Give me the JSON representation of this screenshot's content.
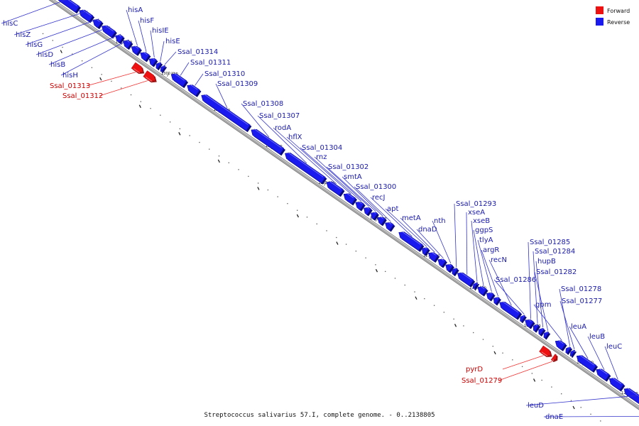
{
  "caption": "Streptococcus salivarius 57.I, complete genome. - 0..2138805",
  "colors": {
    "forward": "#ee1111",
    "reverse": "#1a1aee",
    "forward_label": "#cc0000",
    "reverse_label": "#1a1aaa",
    "track": "#a8a8a8"
  },
  "legend": [
    {
      "name": "Forward",
      "strand": "forward"
    },
    {
      "name": "Reverse",
      "strand": "reverse"
    }
  ],
  "ticks": [
    {
      "label": "1305 kbp",
      "t": 0.118
    },
    {
      "label": "1300 kbp",
      "t": 0.195
    },
    {
      "label": "1295 kbp",
      "t": 0.283
    },
    {
      "label": "1290 kbp",
      "t": 0.371
    },
    {
      "label": "1285 kbp",
      "t": 0.46
    },
    {
      "label": "1280 kbp",
      "t": 0.547
    },
    {
      "label": "1275 kbp",
      "t": 0.637
    },
    {
      "label": "1270 kbp",
      "t": 0.715
    },
    {
      "label": "1265 kbp",
      "t": 0.807
    },
    {
      "label": "1260 kbp",
      "t": 0.896
    },
    {
      "label": "1255 kbp",
      "t": 0.971
    }
  ],
  "genes": [
    {
      "name": "hisC",
      "strand": "reverse",
      "t0": 0.005,
      "t1": 0.04,
      "label_at": [
        4,
        36
      ]
    },
    {
      "name": "hisZ",
      "strand": "reverse",
      "t0": 0.043,
      "t1": 0.063,
      "label_at": [
        22,
        52
      ]
    },
    {
      "name": "hisG",
      "strand": "reverse",
      "t0": 0.066,
      "t1": 0.078,
      "label_at": [
        38,
        66
      ]
    },
    {
      "name": "hisD",
      "strand": "reverse",
      "t0": 0.081,
      "t1": 0.101,
      "label_at": [
        53,
        80
      ]
    },
    {
      "name": "hisB",
      "strand": "reverse",
      "t0": 0.104,
      "t1": 0.114,
      "label_at": [
        71,
        94
      ]
    },
    {
      "name": "hisH",
      "strand": "reverse",
      "t0": 0.117,
      "t1": 0.128,
      "label_at": [
        88,
        109
      ]
    },
    {
      "name": "hisA",
      "strand": "reverse",
      "t0": 0.131,
      "t1": 0.143,
      "label_at": [
        180,
        17
      ]
    },
    {
      "name": "hisF",
      "strand": "reverse",
      "t0": 0.146,
      "t1": 0.158,
      "label_at": [
        197,
        32
      ]
    },
    {
      "name": "hisIE",
      "strand": "reverse",
      "t0": 0.161,
      "t1": 0.17,
      "label_at": [
        214,
        46
      ]
    },
    {
      "name": "hisE",
      "strand": "reverse",
      "t0": 0.173,
      "t1": 0.178,
      "label_at": [
        233,
        61
      ]
    },
    {
      "name": "Ssal_01314",
      "strand": "reverse",
      "t0": 0.181,
      "t1": 0.185,
      "label_at": [
        250,
        76
      ]
    },
    {
      "name": "Ssal_01313",
      "strand": "forward",
      "t0": 0.148,
      "t1": 0.164,
      "label_at": [
        70,
        124
      ]
    },
    {
      "name": "Ssal_01312",
      "strand": "forward",
      "t0": 0.168,
      "t1": 0.185,
      "label_at": [
        88,
        138
      ]
    },
    {
      "name": "Ssal_01311",
      "strand": "reverse",
      "t0": 0.198,
      "t1": 0.221,
      "label_at": [
        268,
        91
      ]
    },
    {
      "name": "Ssal_01310",
      "strand": "reverse",
      "t0": 0.225,
      "t1": 0.243,
      "label_at": [
        288,
        107
      ]
    },
    {
      "name": "Ssal_01309",
      "strand": "reverse",
      "t0": 0.249,
      "t1": 0.328,
      "label_at": [
        306,
        121
      ]
    },
    {
      "name": "Ssal_01308",
      "strand": "reverse",
      "t0": 0.333,
      "t1": 0.385,
      "label_at": [
        342,
        149
      ]
    },
    {
      "name": "Ssal_01307",
      "strand": "reverse",
      "t0": 0.39,
      "t1": 0.455,
      "label_at": [
        365,
        166
      ]
    },
    {
      "name": "rodA",
      "strand": "reverse",
      "t0": 0.46,
      "t1": 0.485,
      "label_at": [
        387,
        183
      ]
    },
    {
      "name": "hflX",
      "strand": "reverse",
      "t0": 0.489,
      "t1": 0.506,
      "label_at": [
        406,
        196
      ]
    },
    {
      "name": "Ssal_01304",
      "strand": "reverse",
      "t0": 0.509,
      "t1": 0.52,
      "label_at": [
        425,
        211
      ]
    },
    {
      "name": "rnz",
      "strand": "reverse",
      "t0": 0.523,
      "t1": 0.532,
      "label_at": [
        445,
        224
      ]
    },
    {
      "name": "Ssal_01302",
      "strand": "reverse",
      "t0": 0.535,
      "t1": 0.543,
      "label_at": [
        462,
        238
      ]
    },
    {
      "name": "smtA",
      "strand": "reverse",
      "t0": 0.546,
      "t1": 0.556,
      "label_at": [
        484,
        252
      ]
    },
    {
      "name": "Ssal_01300",
      "strand": "reverse",
      "t0": 0.559,
      "t1": 0.57,
      "label_at": [
        501,
        266
      ]
    },
    {
      "name": "recJ",
      "strand": "reverse",
      "t0": 0.582,
      "t1": 0.619,
      "label_at": [
        524,
        281
      ]
    },
    {
      "name": "apt",
      "strand": "reverse",
      "t0": 0.621,
      "t1": 0.629,
      "label_at": [
        545,
        297
      ]
    },
    {
      "name": "metA",
      "strand": "reverse",
      "t0": 0.632,
      "t1": 0.645,
      "label_at": [
        566,
        310
      ]
    },
    {
      "name": "dnaD",
      "strand": "reverse",
      "t0": 0.648,
      "t1": 0.658,
      "label_at": [
        589,
        326
      ]
    },
    {
      "name": "nth",
      "strand": "reverse",
      "t0": 0.661,
      "t1": 0.67,
      "label_at": [
        611,
        314
      ]
    },
    {
      "name": "Ssal_01293",
      "strand": "reverse",
      "t0": 0.672,
      "t1": 0.678,
      "label_at": [
        642,
        290
      ]
    },
    {
      "name": "xseA",
      "strand": "reverse",
      "t0": 0.681,
      "t1": 0.705,
      "label_at": [
        659,
        302
      ]
    },
    {
      "name": "xseB",
      "strand": "reverse",
      "t0": 0.708,
      "t1": 0.712,
      "label_at": [
        666,
        314
      ]
    },
    {
      "name": "ggpS",
      "strand": "reverse",
      "t0": 0.715,
      "t1": 0.727,
      "label_at": [
        669,
        327
      ]
    },
    {
      "name": "tlyA",
      "strand": "reverse",
      "t0": 0.73,
      "t1": 0.739,
      "label_at": [
        675,
        341
      ]
    },
    {
      "name": "argR",
      "strand": "reverse",
      "t0": 0.742,
      "t1": 0.749,
      "label_at": [
        680,
        355
      ]
    },
    {
      "name": "recN",
      "strand": "reverse",
      "t0": 0.752,
      "t1": 0.784,
      "label_at": [
        691,
        369
      ]
    },
    {
      "name": "Ssal_01286",
      "strand": "reverse",
      "t0": 0.787,
      "t1": 0.792,
      "label_at": [
        698,
        397
      ]
    },
    {
      "name": "Ssal_01285",
      "strand": "reverse",
      "t0": 0.795,
      "t1": 0.806,
      "label_at": [
        746,
        344
      ]
    },
    {
      "name": "Ssal_01284",
      "strand": "reverse",
      "t0": 0.809,
      "t1": 0.815,
      "label_at": [
        753,
        357
      ]
    },
    {
      "name": "hupB",
      "strand": "reverse",
      "t0": 0.818,
      "t1": 0.824,
      "label_at": [
        757,
        371
      ]
    },
    {
      "name": "Ssal_01282",
      "strand": "reverse",
      "t0": 0.827,
      "t1": 0.832,
      "label_at": [
        755,
        386
      ]
    },
    {
      "name": "gpm",
      "strand": "reverse",
      "t0": 0.846,
      "t1": 0.86,
      "label_at": [
        754,
        432
      ]
    },
    {
      "name": "pyrD",
      "strand": "forward",
      "t0": 0.836,
      "t1": 0.852,
      "label_at": [
        656,
        523
      ]
    },
    {
      "name": "Ssal_01279",
      "strand": "forward",
      "t0": 0.856,
      "t1": 0.861,
      "label_at": [
        650,
        539
      ]
    },
    {
      "name": "Ssal_01278",
      "strand": "reverse",
      "t0": 0.864,
      "t1": 0.869,
      "label_at": [
        790,
        410
      ]
    },
    {
      "name": "Ssal_01277",
      "strand": "reverse",
      "t0": 0.872,
      "t1": 0.876,
      "label_at": [
        791,
        427
      ]
    },
    {
      "name": "leuA",
      "strand": "reverse",
      "t0": 0.882,
      "t1": 0.912,
      "label_at": [
        804,
        463
      ]
    },
    {
      "name": "leuB",
      "strand": "reverse",
      "t0": 0.915,
      "t1": 0.934,
      "label_at": [
        830,
        477
      ]
    },
    {
      "name": "leuC",
      "strand": "reverse",
      "t0": 0.937,
      "t1": 0.958,
      "label_at": [
        854,
        491
      ]
    },
    {
      "name": "leuD",
      "strand": "reverse",
      "t0": 0.962,
      "t1": 1.01,
      "label_at": [
        743,
        574
      ]
    },
    {
      "name": "dnaE",
      "strand": "reverse",
      "t0": 1.014,
      "t1": 1.06,
      "label_at": [
        768,
        590
      ]
    }
  ]
}
